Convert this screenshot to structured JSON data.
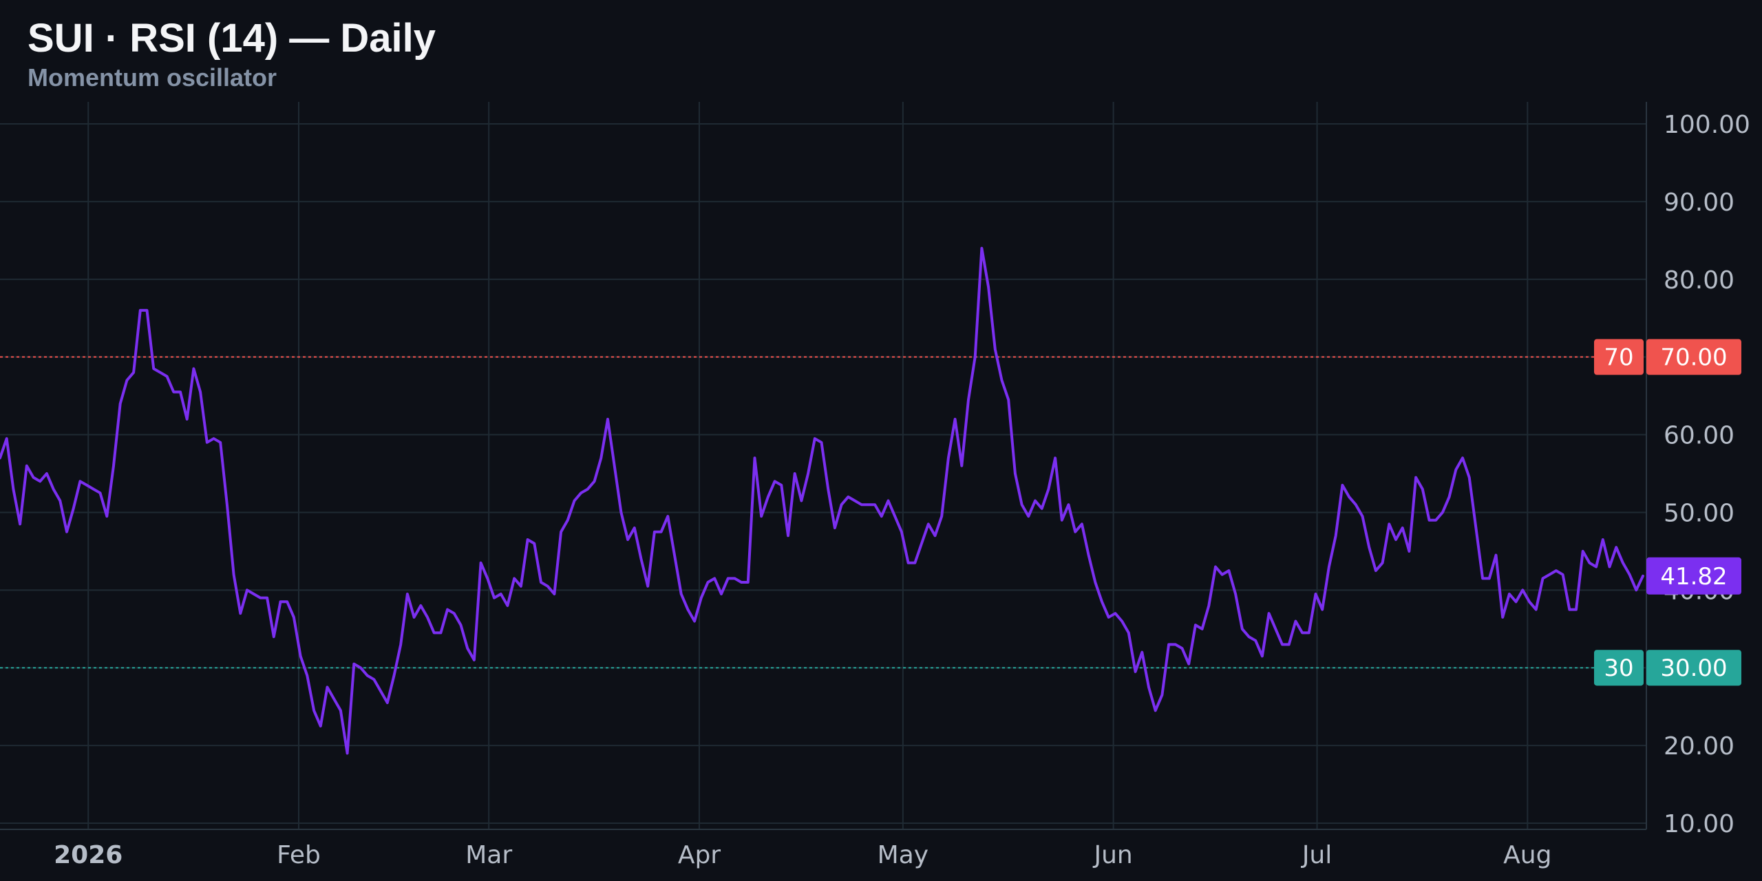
{
  "header": {
    "title": "SUI · RSI (14) — Daily",
    "subtitle": "Momentum oscillator"
  },
  "colors": {
    "background": "#0d1017",
    "grid": "#1f2a33",
    "rsi_line": "#7b2ff0",
    "overbought": "#f0534e",
    "oversold": "#26a69a",
    "axis_text": "#b6bdc8"
  },
  "chart_data": {
    "type": "line",
    "title": "SUI · RSI (14) — Daily",
    "subtitle": "Momentum oscillator",
    "grid": true,
    "ylim": [
      10,
      100
    ],
    "y_ticks": [
      "100.00",
      "90.00",
      "80.00",
      "70.00",
      "60.00",
      "50.00",
      "40.00",
      "30.00",
      "20.00",
      "10.00"
    ],
    "y_tick_values": [
      100,
      90,
      80,
      70,
      60,
      50,
      40,
      30,
      20,
      10
    ],
    "x_start": "2025-12-19",
    "x_end": "2026-08-18",
    "x_ticks": [
      {
        "label": "2026",
        "date": "2026-01-01",
        "bold": true
      },
      {
        "label": "Feb",
        "date": "2026-02-01",
        "bold": false
      },
      {
        "label": "Mar",
        "date": "2026-03-01",
        "bold": false
      },
      {
        "label": "Apr",
        "date": "2026-04-01",
        "bold": false
      },
      {
        "label": "May",
        "date": "2026-05-01",
        "bold": false
      },
      {
        "label": "Jun",
        "date": "2026-06-01",
        "bold": false
      },
      {
        "label": "Jul",
        "date": "2026-07-01",
        "bold": false
      },
      {
        "label": "Aug",
        "date": "2026-08-01",
        "bold": false
      }
    ],
    "reference_lines": [
      {
        "value": 70,
        "label": "70",
        "price_label": "70.00",
        "color": "#f0534e"
      },
      {
        "value": 30,
        "label": "30",
        "price_label": "30.00",
        "color": "#26a69a"
      }
    ],
    "last_value_label": "41.82",
    "series": [
      {
        "values": [
          57.0,
          59.5,
          53.0,
          48.5,
          56.0,
          54.5,
          54.0,
          55.0,
          53.0,
          51.5,
          47.5,
          50.5,
          54.0,
          53.5,
          53.0,
          52.5,
          49.5,
          56.0,
          64.0,
          67.0,
          68.0,
          76.0,
          76.0,
          68.5,
          68.0,
          67.5,
          65.5,
          65.5,
          62.0,
          68.5,
          65.5,
          59.0,
          59.5,
          59.0,
          51.0,
          42.0,
          37.0,
          40.0,
          39.5,
          39.0,
          39.0,
          34.0,
          38.5,
          38.5,
          36.5,
          31.5,
          29.0,
          24.5,
          22.5,
          27.5,
          26.0,
          24.5,
          19.0,
          30.5,
          30.0,
          29.0,
          28.5,
          27.0,
          25.5,
          29.0,
          33.0,
          39.5,
          36.5,
          38.0,
          36.5,
          34.5,
          34.5,
          37.5,
          37.0,
          35.5,
          32.5,
          31.0,
          43.5,
          41.5,
          39.0,
          39.5,
          38.0,
          41.5,
          40.5,
          46.5,
          46.0,
          41.0,
          40.5,
          39.5,
          47.5,
          49.0,
          51.5,
          52.5,
          53.0,
          54.0,
          57.0,
          62.0,
          56.0,
          50.0,
          46.5,
          48.0,
          44.0,
          40.5,
          47.5,
          47.5,
          49.5,
          44.5,
          39.5,
          37.5,
          36.0,
          39.0,
          41.0,
          41.5,
          39.5,
          41.5,
          41.5,
          41.0,
          41.0,
          57.0,
          49.5,
          52.0,
          54.0,
          53.5,
          47.0,
          55.0,
          51.5,
          55.0,
          59.5,
          59.0,
          53.0,
          48.0,
          51.0,
          52.0,
          51.5,
          51.0,
          51.0,
          51.0,
          49.5,
          51.5,
          49.5,
          47.5,
          43.5,
          43.5,
          46.0,
          48.5,
          47.0,
          49.5,
          57.0,
          62.0,
          56.0,
          64.5,
          70.0,
          84.0,
          79.0,
          71.0,
          67.0,
          64.5,
          55.0,
          51.0,
          49.5,
          51.5,
          50.5,
          53.0,
          57.0,
          49.0,
          51.0,
          47.5,
          48.5,
          44.5,
          41.0,
          38.5,
          36.5,
          37.0,
          36.0,
          34.5,
          29.5,
          32.0,
          27.5,
          24.5,
          26.5,
          33.0,
          33.0,
          32.5,
          30.5,
          35.5,
          35.0,
          38.0,
          43.0,
          42.0,
          42.5,
          39.5,
          35.0,
          34.0,
          33.5,
          31.5,
          37.0,
          35.0,
          33.0,
          33.0,
          36.0,
          34.5,
          34.5,
          39.5,
          37.5,
          43.0,
          47.0,
          53.5,
          52.0,
          51.0,
          49.5,
          45.5,
          42.5,
          43.5,
          48.5,
          46.5,
          48.0,
          45.0,
          54.5,
          53.0,
          49.0,
          49.0,
          50.0,
          52.0,
          55.5,
          57.0,
          54.5,
          48.0,
          41.5,
          41.5,
          44.5,
          36.5,
          39.5,
          38.5,
          40.0,
          38.5,
          37.5,
          41.5,
          42.0,
          42.5,
          42.0,
          37.5,
          37.5,
          45.0,
          43.5,
          43.0,
          46.5,
          43.0,
          45.5,
          43.5,
          42.0,
          40.0,
          41.82
        ]
      }
    ]
  }
}
